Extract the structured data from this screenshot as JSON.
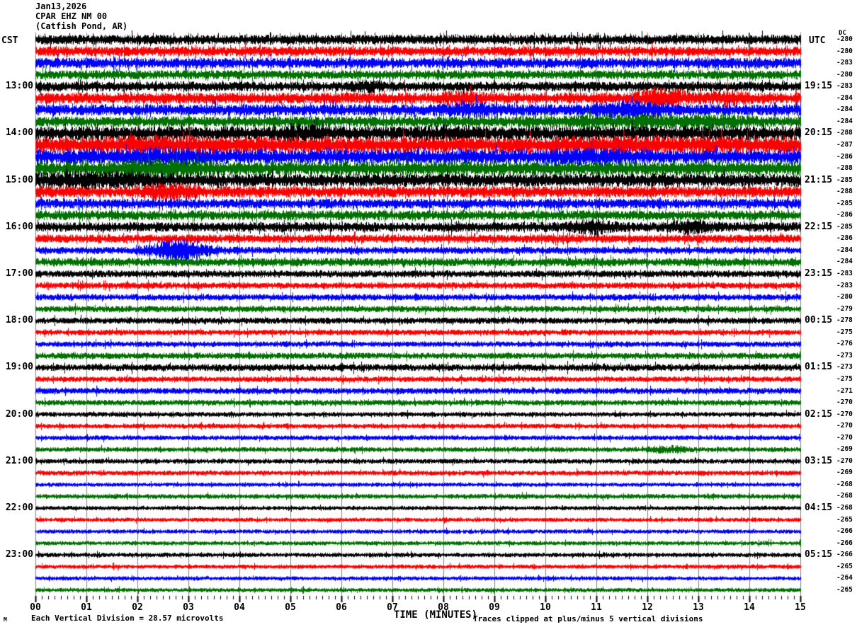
{
  "header": {
    "date": "Jan13,2026",
    "station": "CPAR EHZ NM 00",
    "location": "(Catfish Pond, AR)"
  },
  "axes": {
    "left_timezone": "CST",
    "right_timezone": "UTC",
    "dc_column_label": "DC",
    "x_title": "TIME (MINUTES)",
    "x_tick_labels": [
      "00",
      "01",
      "02",
      "03",
      "04",
      "05",
      "06",
      "07",
      "08",
      "09",
      "10",
      "11",
      "12",
      "13",
      "14",
      "15"
    ]
  },
  "footer": {
    "scale_note": "Each Vertical Division =   28.57 microvolts",
    "clip_note": "Traces clipped at plus/minus 5 vertical divisions",
    "corner_mark": "M"
  },
  "colors": {
    "palette": {
      "black": "#000000",
      "red": "#ff0000",
      "blue": "#0000ff",
      "green": "#007000"
    },
    "grid": "#808080",
    "tick": "#000000",
    "background": "#ffffff"
  },
  "chart_data": {
    "type": "line",
    "title": "CPAR EHZ NM 00 helicorder (Catfish Pond, AR) Jan13,2026",
    "xlabel": "TIME (MINUTES)",
    "x_range_minutes": [
      0,
      15
    ],
    "minutes_per_row": 15,
    "minor_ticks_per_minute": 8,
    "grid": true,
    "row_color_cycle": [
      "black",
      "red",
      "blue",
      "green"
    ],
    "rows": [
      {
        "cst": "",
        "utc": "",
        "dc": -280,
        "color": "black",
        "amp": 7,
        "bursts": []
      },
      {
        "cst": "",
        "utc": "",
        "dc": -280,
        "color": "red",
        "amp": 7,
        "bursts": []
      },
      {
        "cst": "",
        "utc": "",
        "dc": -283,
        "color": "blue",
        "amp": 7.5,
        "bursts": []
      },
      {
        "cst": "",
        "utc": "",
        "dc": -280,
        "color": "green",
        "amp": 6.5,
        "bursts": []
      },
      {
        "cst": "13:00",
        "utc": "19:15",
        "dc": -283,
        "color": "black",
        "amp": 7,
        "bursts": [
          {
            "c": 6.5,
            "w": 0.3,
            "g": 0.5
          }
        ]
      },
      {
        "cst": "",
        "utc": "",
        "dc": -284,
        "color": "red",
        "amp": 8,
        "bursts": [
          {
            "c": 8.3,
            "w": 0.4,
            "g": 0.5
          },
          {
            "c": 12.3,
            "w": 0.45,
            "g": 1.1
          },
          {
            "c": 13.6,
            "w": 0.3,
            "g": 0.7
          }
        ]
      },
      {
        "cst": "",
        "utc": "",
        "dc": -284,
        "color": "blue",
        "amp": 8,
        "bursts": [
          {
            "c": 8.6,
            "w": 0.5,
            "g": 0.7
          },
          {
            "c": 11.7,
            "w": 0.6,
            "g": 0.9
          }
        ]
      },
      {
        "cst": "",
        "utc": "",
        "dc": -284,
        "color": "green",
        "amp": 7.5,
        "bursts": [
          {
            "c": 11.5,
            "w": 1.5,
            "g": 0.5
          },
          {
            "c": 13.3,
            "w": 0.6,
            "g": 0.6
          }
        ]
      },
      {
        "cst": "14:00",
        "utc": "20:15",
        "dc": -288,
        "color": "black",
        "amp": 10,
        "bursts": [
          {
            "c": 5.3,
            "w": 0.5,
            "g": 0.4
          },
          {
            "c": 8.2,
            "w": 0.6,
            "g": 0.3
          }
        ]
      },
      {
        "cst": "",
        "utc": "",
        "dc": -287,
        "color": "red",
        "amp": 12,
        "bursts": [
          {
            "c": 2.5,
            "w": 1.2,
            "g": 0.25
          },
          {
            "c": 11.5,
            "w": 1.0,
            "g": 0.2
          }
        ]
      },
      {
        "cst": "",
        "utc": "",
        "dc": -286,
        "color": "blue",
        "amp": 10.5,
        "bursts": [
          {
            "c": 2.6,
            "w": 0.8,
            "g": 0.4
          },
          {
            "c": 10.8,
            "w": 0.8,
            "g": 0.3
          }
        ]
      },
      {
        "cst": "",
        "utc": "",
        "dc": -288,
        "color": "green",
        "amp": 10,
        "bursts": [
          {
            "c": 2.4,
            "w": 0.8,
            "g": 0.5
          }
        ]
      },
      {
        "cst": "15:00",
        "utc": "21:15",
        "dc": -285,
        "color": "black",
        "amp": 9.5,
        "bursts": [
          {
            "c": 1.2,
            "w": 1.2,
            "g": 0.5
          }
        ]
      },
      {
        "cst": "",
        "utc": "",
        "dc": -288,
        "color": "red",
        "amp": 8,
        "bursts": [
          {
            "c": 2.6,
            "w": 0.5,
            "g": 0.8
          }
        ]
      },
      {
        "cst": "",
        "utc": "",
        "dc": -285,
        "color": "blue",
        "amp": 7,
        "bursts": []
      },
      {
        "cst": "",
        "utc": "",
        "dc": -286,
        "color": "green",
        "amp": 7,
        "bursts": []
      },
      {
        "cst": "16:00",
        "utc": "22:15",
        "dc": -285,
        "color": "black",
        "amp": 7,
        "bursts": [
          {
            "c": 10.9,
            "w": 0.4,
            "g": 0.7
          },
          {
            "c": 12.9,
            "w": 0.4,
            "g": 0.7
          }
        ]
      },
      {
        "cst": "",
        "utc": "",
        "dc": -286,
        "color": "red",
        "amp": 6,
        "bursts": []
      },
      {
        "cst": "",
        "utc": "",
        "dc": -284,
        "color": "blue",
        "amp": 5,
        "bursts": [
          {
            "c": 2.8,
            "w": 0.55,
            "g": 2.4
          }
        ]
      },
      {
        "cst": "",
        "utc": "",
        "dc": -284,
        "color": "green",
        "amp": 6,
        "bursts": []
      },
      {
        "cst": "17:00",
        "utc": "23:15",
        "dc": -283,
        "color": "black",
        "amp": 5,
        "bursts": []
      },
      {
        "cst": "",
        "utc": "",
        "dc": -283,
        "color": "red",
        "amp": 4.5,
        "bursts": []
      },
      {
        "cst": "",
        "utc": "",
        "dc": -280,
        "color": "blue",
        "amp": 4.5,
        "bursts": []
      },
      {
        "cst": "",
        "utc": "",
        "dc": -279,
        "color": "green",
        "amp": 4.5,
        "bursts": []
      },
      {
        "cst": "18:00",
        "utc": "00:15",
        "dc": -278,
        "color": "black",
        "amp": 4.5,
        "bursts": []
      },
      {
        "cst": "",
        "utc": "",
        "dc": -275,
        "color": "red",
        "amp": 4,
        "bursts": []
      },
      {
        "cst": "",
        "utc": "",
        "dc": -276,
        "color": "blue",
        "amp": 4,
        "bursts": []
      },
      {
        "cst": "",
        "utc": "",
        "dc": -273,
        "color": "green",
        "amp": 4.5,
        "bursts": []
      },
      {
        "cst": "19:00",
        "utc": "01:15",
        "dc": -273,
        "color": "black",
        "amp": 5,
        "bursts": []
      },
      {
        "cst": "",
        "utc": "",
        "dc": -275,
        "color": "red",
        "amp": 4,
        "bursts": []
      },
      {
        "cst": "",
        "utc": "",
        "dc": -271,
        "color": "blue",
        "amp": 4.5,
        "bursts": []
      },
      {
        "cst": "",
        "utc": "",
        "dc": -270,
        "color": "green",
        "amp": 4,
        "bursts": []
      },
      {
        "cst": "20:00",
        "utc": "02:15",
        "dc": -270,
        "color": "black",
        "amp": 3.5,
        "bursts": []
      },
      {
        "cst": "",
        "utc": "",
        "dc": -270,
        "color": "red",
        "amp": 3.5,
        "bursts": []
      },
      {
        "cst": "",
        "utc": "",
        "dc": -270,
        "color": "blue",
        "amp": 3.5,
        "bursts": []
      },
      {
        "cst": "",
        "utc": "",
        "dc": -269,
        "color": "green",
        "amp": 3.5,
        "bursts": [
          {
            "c": 12.4,
            "w": 0.35,
            "g": 1.0
          }
        ]
      },
      {
        "cst": "21:00",
        "utc": "03:15",
        "dc": -270,
        "color": "black",
        "amp": 3.5,
        "bursts": []
      },
      {
        "cst": "",
        "utc": "",
        "dc": -269,
        "color": "red",
        "amp": 3.5,
        "bursts": []
      },
      {
        "cst": "",
        "utc": "",
        "dc": -268,
        "color": "blue",
        "amp": 3,
        "bursts": []
      },
      {
        "cst": "",
        "utc": "",
        "dc": -268,
        "color": "green",
        "amp": 3.5,
        "bursts": []
      },
      {
        "cst": "22:00",
        "utc": "04:15",
        "dc": -268,
        "color": "black",
        "amp": 3,
        "bursts": []
      },
      {
        "cst": "",
        "utc": "",
        "dc": -265,
        "color": "red",
        "amp": 3,
        "bursts": []
      },
      {
        "cst": "",
        "utc": "",
        "dc": -266,
        "color": "blue",
        "amp": 3,
        "bursts": []
      },
      {
        "cst": "",
        "utc": "",
        "dc": -266,
        "color": "green",
        "amp": 3,
        "bursts": []
      },
      {
        "cst": "23:00",
        "utc": "05:15",
        "dc": -266,
        "color": "black",
        "amp": 3.2,
        "bursts": []
      },
      {
        "cst": "",
        "utc": "",
        "dc": -265,
        "color": "red",
        "amp": 3,
        "bursts": []
      },
      {
        "cst": "",
        "utc": "",
        "dc": -264,
        "color": "blue",
        "amp": 3,
        "bursts": []
      },
      {
        "cst": "",
        "utc": "",
        "dc": -265,
        "color": "green",
        "amp": 3,
        "bursts": []
      }
    ]
  }
}
